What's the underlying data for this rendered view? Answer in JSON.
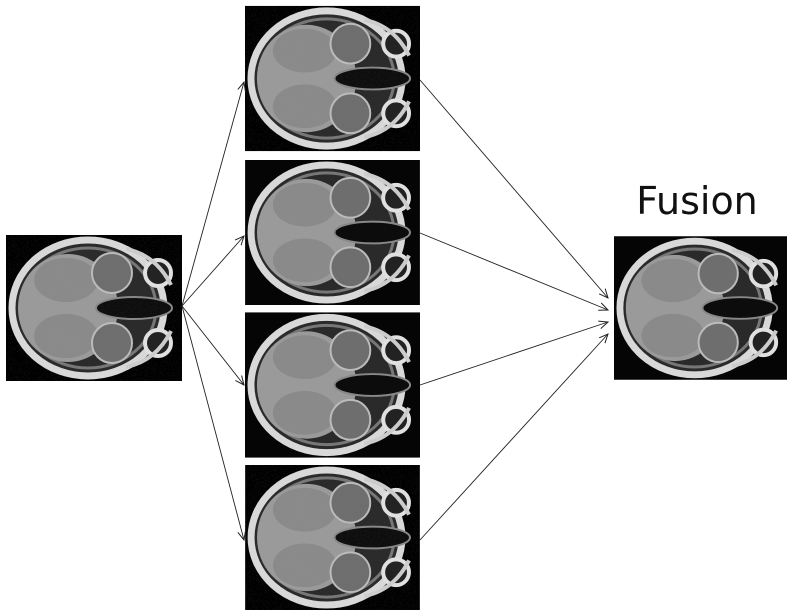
{
  "labels": {
    "fusion": "Fusion"
  }
}
